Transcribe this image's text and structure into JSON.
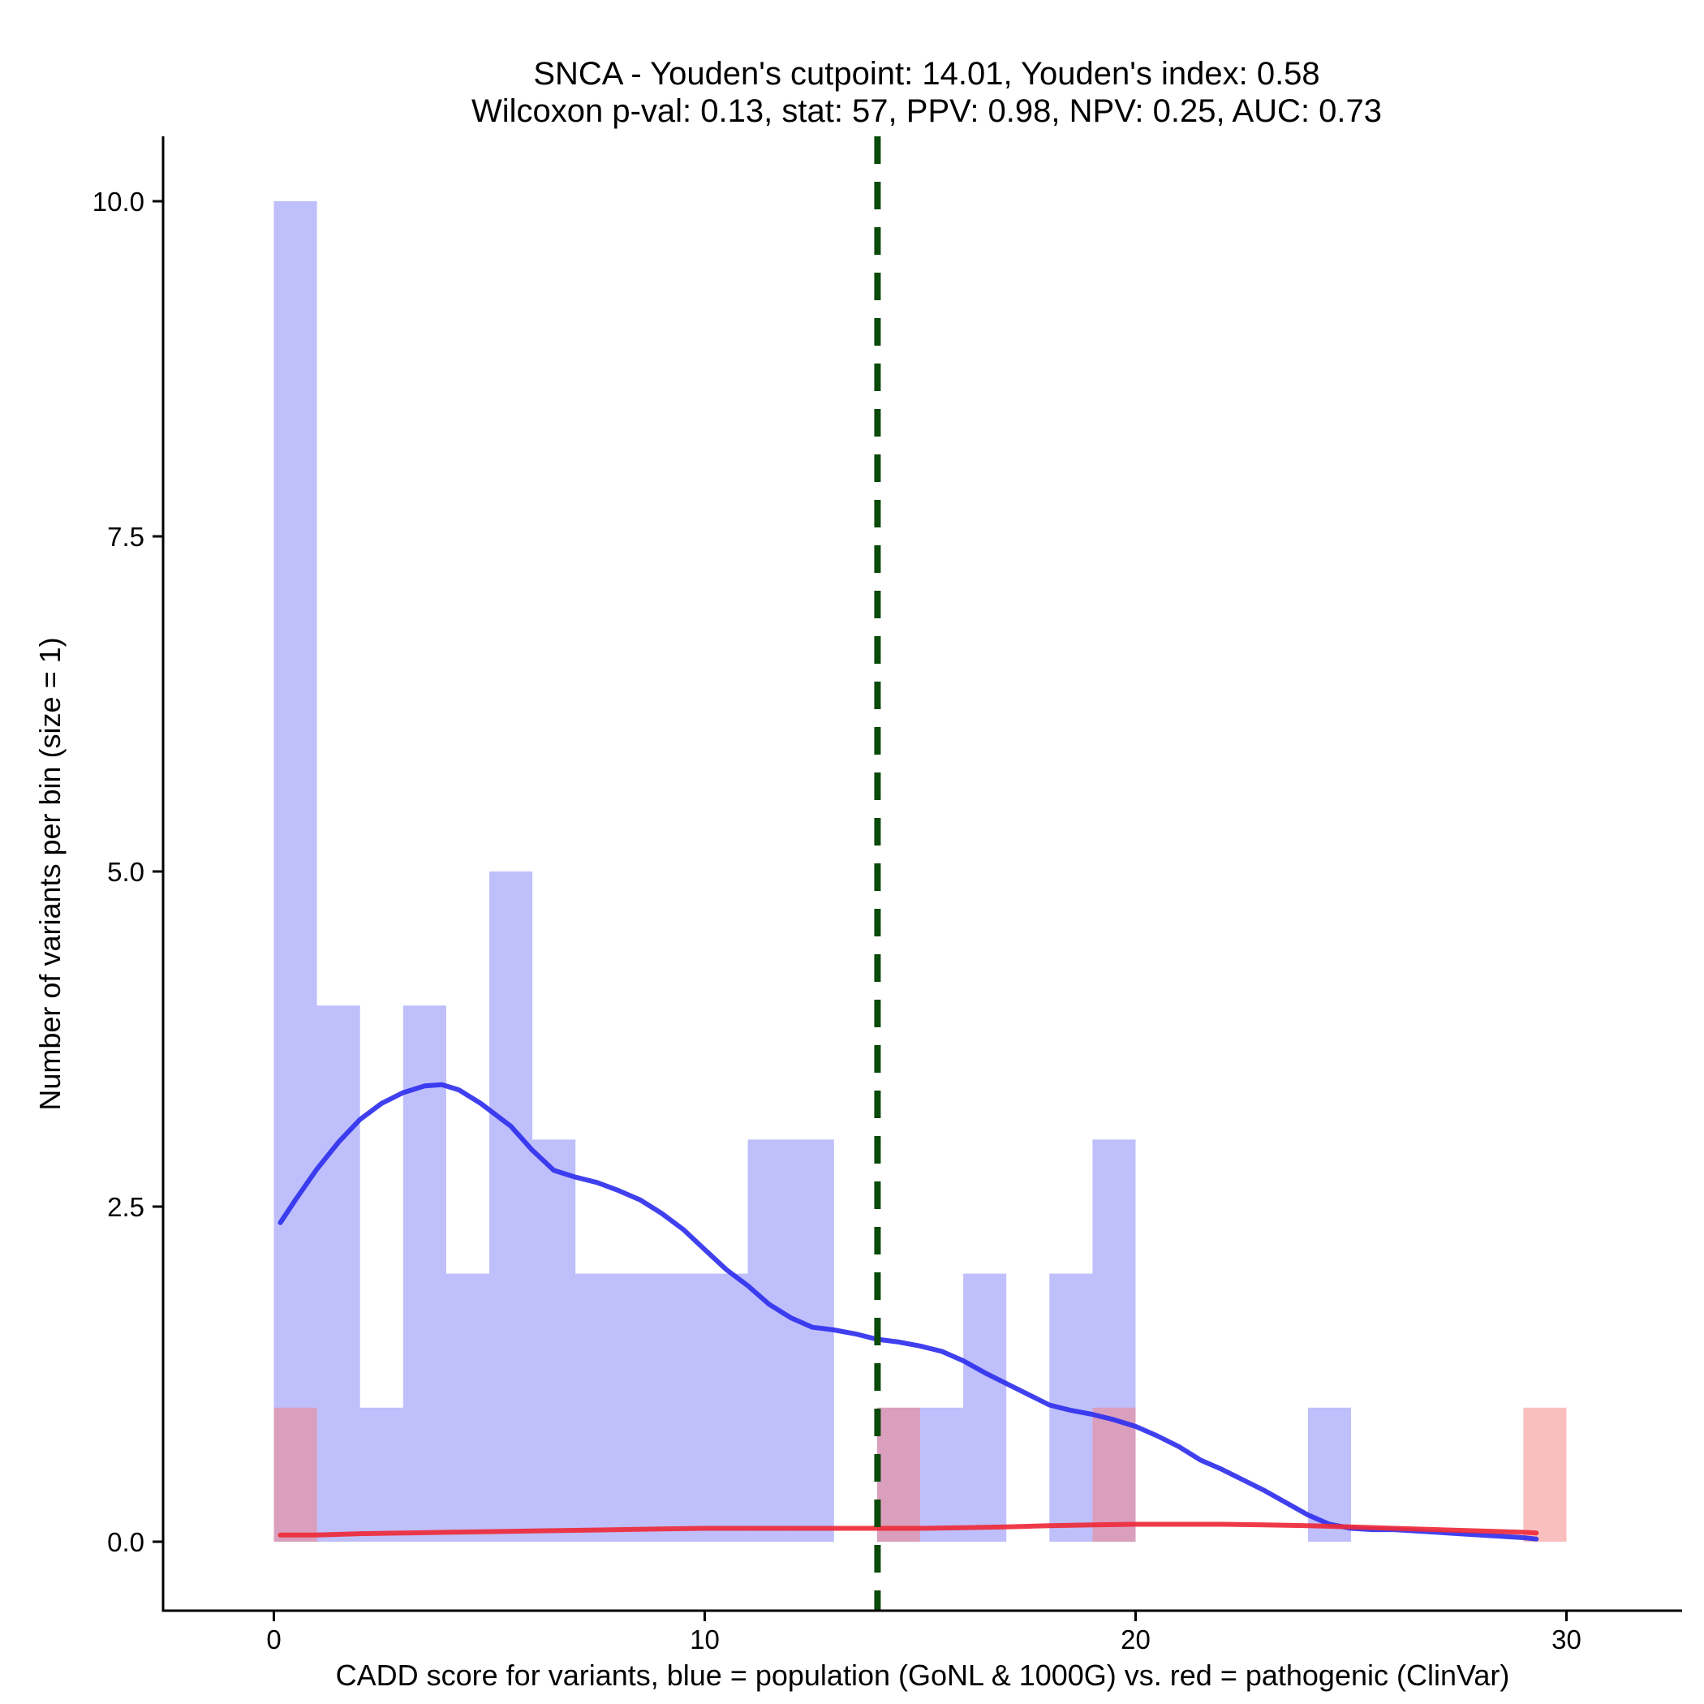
{
  "chart_data": {
    "type": "bar",
    "title": "SNCA - Youden's cutpoint: 14.01, Youden's index: 0.58",
    "subtitle": "Wilcoxon p-val: 0.13, stat: 57, PPV: 0.98, NPV: 0.25, AUC: 0.73",
    "xlabel": "CADD score for variants, blue = population (GoNL & 1000G) vs. red = pathogenic (ClinVar)",
    "ylabel": "Number of variants per bin (size = 1)",
    "xlim": [
      -2.6,
      32.6
    ],
    "ylim": [
      -0.5,
      10.5
    ],
    "x_ticks": [
      {
        "value": 0,
        "label": "0"
      },
      {
        "value": 10,
        "label": "10"
      },
      {
        "value": 20,
        "label": "20"
      },
      {
        "value": 30,
        "label": "30"
      }
    ],
    "y_ticks": [
      {
        "value": 0,
        "label": "0.0"
      },
      {
        "value": 2.5,
        "label": "2.5"
      },
      {
        "value": 5,
        "label": "5.0"
      },
      {
        "value": 7.5,
        "label": "7.5"
      },
      {
        "value": 10,
        "label": "10.0"
      }
    ],
    "bin_width": 1,
    "cutpoint": 14.01,
    "series": [
      {
        "name": "population (GoNL & 1000G)",
        "color": "#8080f8",
        "bins": [
          {
            "x0": 0,
            "count": 10
          },
          {
            "x0": 1,
            "count": 4
          },
          {
            "x0": 2,
            "count": 1
          },
          {
            "x0": 3,
            "count": 4
          },
          {
            "x0": 4,
            "count": 2
          },
          {
            "x0": 5,
            "count": 5
          },
          {
            "x0": 6,
            "count": 3
          },
          {
            "x0": 7,
            "count": 2
          },
          {
            "x0": 8,
            "count": 2
          },
          {
            "x0": 9,
            "count": 2
          },
          {
            "x0": 10,
            "count": 2
          },
          {
            "x0": 11,
            "count": 3
          },
          {
            "x0": 12,
            "count": 3
          },
          {
            "x0": 14,
            "count": 1
          },
          {
            "x0": 15,
            "count": 1
          },
          {
            "x0": 16,
            "count": 2
          },
          {
            "x0": 18,
            "count": 2
          },
          {
            "x0": 19,
            "count": 3
          },
          {
            "x0": 24,
            "count": 1
          }
        ]
      },
      {
        "name": "pathogenic (ClinVar)",
        "color": "#f48080",
        "bins": [
          {
            "x0": 0,
            "count": 1
          },
          {
            "x0": 14,
            "count": 1
          },
          {
            "x0": 19,
            "count": 1
          },
          {
            "x0": 29,
            "count": 1
          }
        ]
      }
    ],
    "density_curves": [
      {
        "name": "population density",
        "color": "#3030ee",
        "x": [
          0.15,
          0.5,
          1,
          1.5,
          2,
          2.5,
          3,
          3.5,
          3.9,
          4.3,
          4.8,
          5.5,
          6,
          6.5,
          7,
          7.5,
          8,
          8.5,
          9,
          9.5,
          10,
          10.5,
          11,
          11.5,
          12,
          12.5,
          13,
          13.5,
          14,
          14.5,
          15,
          15.5,
          16,
          16.5,
          17,
          17.5,
          18,
          18.5,
          19,
          19.5,
          20,
          20.5,
          21,
          21.5,
          22,
          22.5,
          23,
          23.5,
          24,
          24.5,
          25,
          25.5,
          26,
          26.5,
          27,
          27.5,
          28,
          28.5,
          29,
          29.3
        ],
        "y": [
          2.38,
          2.55,
          2.78,
          2.98,
          3.15,
          3.27,
          3.35,
          3.4,
          3.41,
          3.37,
          3.27,
          3.1,
          2.92,
          2.77,
          2.72,
          2.68,
          2.62,
          2.55,
          2.45,
          2.33,
          2.18,
          2.03,
          1.91,
          1.77,
          1.67,
          1.6,
          1.58,
          1.55,
          1.51,
          1.49,
          1.46,
          1.42,
          1.35,
          1.26,
          1.18,
          1.1,
          1.02,
          0.98,
          0.95,
          0.91,
          0.86,
          0.79,
          0.71,
          0.61,
          0.54,
          0.46,
          0.38,
          0.29,
          0.2,
          0.13,
          0.1,
          0.09,
          0.09,
          0.08,
          0.07,
          0.06,
          0.05,
          0.04,
          0.03,
          0.02
        ]
      },
      {
        "name": "pathogenic density",
        "color": "#ee2a3a",
        "x": [
          0.15,
          1,
          2,
          3,
          4,
          5,
          6,
          7,
          8,
          9,
          10,
          11,
          12,
          13,
          14,
          15,
          16,
          17,
          18,
          19,
          20,
          21,
          22,
          23,
          24,
          25,
          26,
          27,
          28,
          29,
          29.3
        ],
        "y": [
          0.05,
          0.05,
          0.06,
          0.065,
          0.07,
          0.075,
          0.08,
          0.085,
          0.09,
          0.095,
          0.1,
          0.1,
          0.1,
          0.1,
          0.1,
          0.1,
          0.105,
          0.11,
          0.12,
          0.125,
          0.13,
          0.13,
          0.13,
          0.125,
          0.12,
          0.11,
          0.1,
          0.09,
          0.08,
          0.07,
          0.065
        ]
      }
    ]
  }
}
